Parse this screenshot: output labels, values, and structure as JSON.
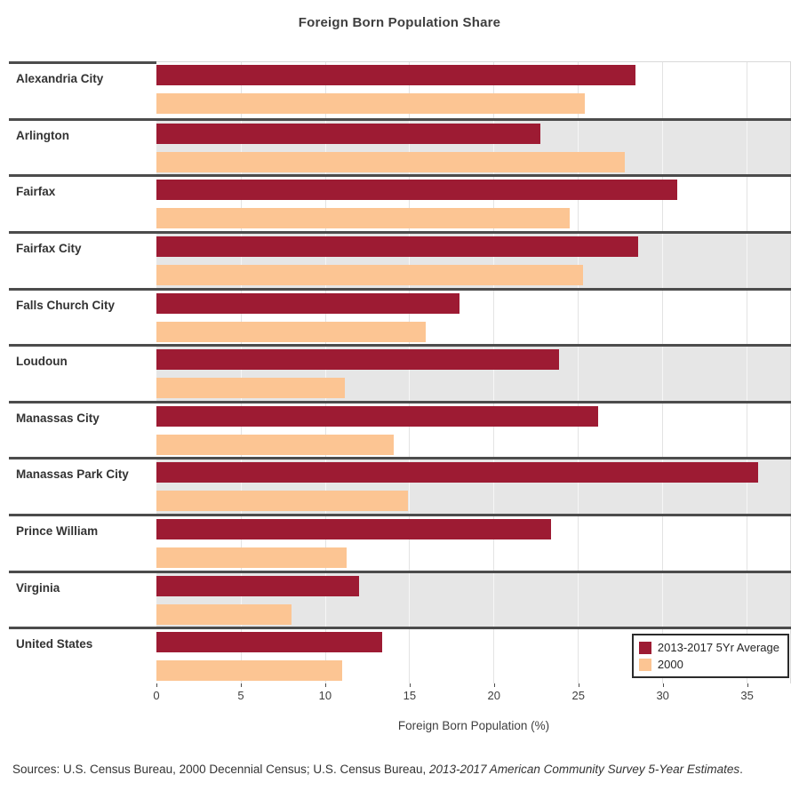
{
  "title": "Foreign Born Population Share",
  "chart_data": {
    "type": "bar",
    "orientation": "horizontal",
    "title": "Foreign Born Population Share",
    "xlabel": "Foreign Born Population (%)",
    "xlim": [
      0,
      37.6
    ],
    "xticks": [
      0,
      5,
      10,
      15,
      20,
      25,
      30,
      35
    ],
    "grid": true,
    "legend_position": "lower right",
    "categories": [
      "Alexandria City",
      "Arlington",
      "Fairfax",
      "Fairfax City",
      "Falls Church City",
      "Loudoun",
      "Manassas City",
      "Manassas Park City",
      "Prince William",
      "Virginia",
      "United States"
    ],
    "series": [
      {
        "name": "2013-2017 5Yr Average",
        "color": "#9d1b33",
        "values": [
          28.4,
          22.8,
          30.9,
          28.6,
          18.0,
          23.9,
          26.2,
          35.7,
          23.4,
          12.0,
          13.4
        ]
      },
      {
        "name": "2000",
        "color": "#fcc593",
        "values": [
          25.4,
          27.8,
          24.5,
          25.3,
          16.0,
          11.2,
          14.1,
          14.9,
          11.3,
          8.0,
          11.0
        ]
      }
    ],
    "row_alternate_colors": [
      "#ffffff",
      "#e6e6e6"
    ]
  },
  "legend": {
    "items": [
      {
        "label": "2013-2017 5Yr Average",
        "color": "#9d1b33"
      },
      {
        "label": "2000",
        "color": "#fcc593"
      }
    ]
  },
  "source_note": {
    "prefix": "Sources: U.S. Census Bureau, 2000 Decennial Census; U.S. Census Bureau, ",
    "italic": "2013-2017 American Community Survey 5-Year Estimates",
    "suffix": "."
  }
}
